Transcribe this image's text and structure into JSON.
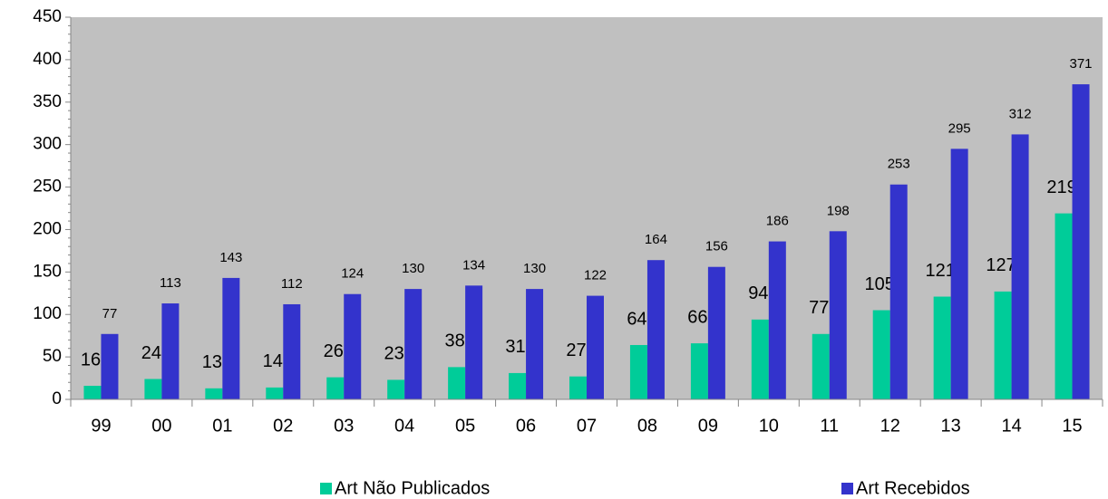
{
  "chart_data": {
    "type": "bar",
    "categories": [
      "99",
      "00",
      "01",
      "02",
      "03",
      "04",
      "05",
      "06",
      "07",
      "08",
      "09",
      "10",
      "11",
      "12",
      "13",
      "14",
      "15"
    ],
    "series": [
      {
        "name": "Art Não Publicados",
        "color": "#00cc99",
        "values": [
          16,
          24,
          13,
          14,
          26,
          23,
          38,
          31,
          27,
          64,
          66,
          94,
          77,
          105,
          121,
          127,
          219
        ]
      },
      {
        "name": "Art Recebidos",
        "color": "#3333cc",
        "values": [
          77,
          113,
          143,
          112,
          124,
          130,
          134,
          130,
          122,
          164,
          156,
          186,
          198,
          253,
          295,
          312,
          371
        ]
      }
    ],
    "ylim": [
      0,
      450
    ],
    "yticks": [
      0,
      50,
      100,
      150,
      200,
      250,
      300,
      350,
      400,
      450
    ],
    "legend": "bottom",
    "plot_background": "#c0c0c0"
  }
}
